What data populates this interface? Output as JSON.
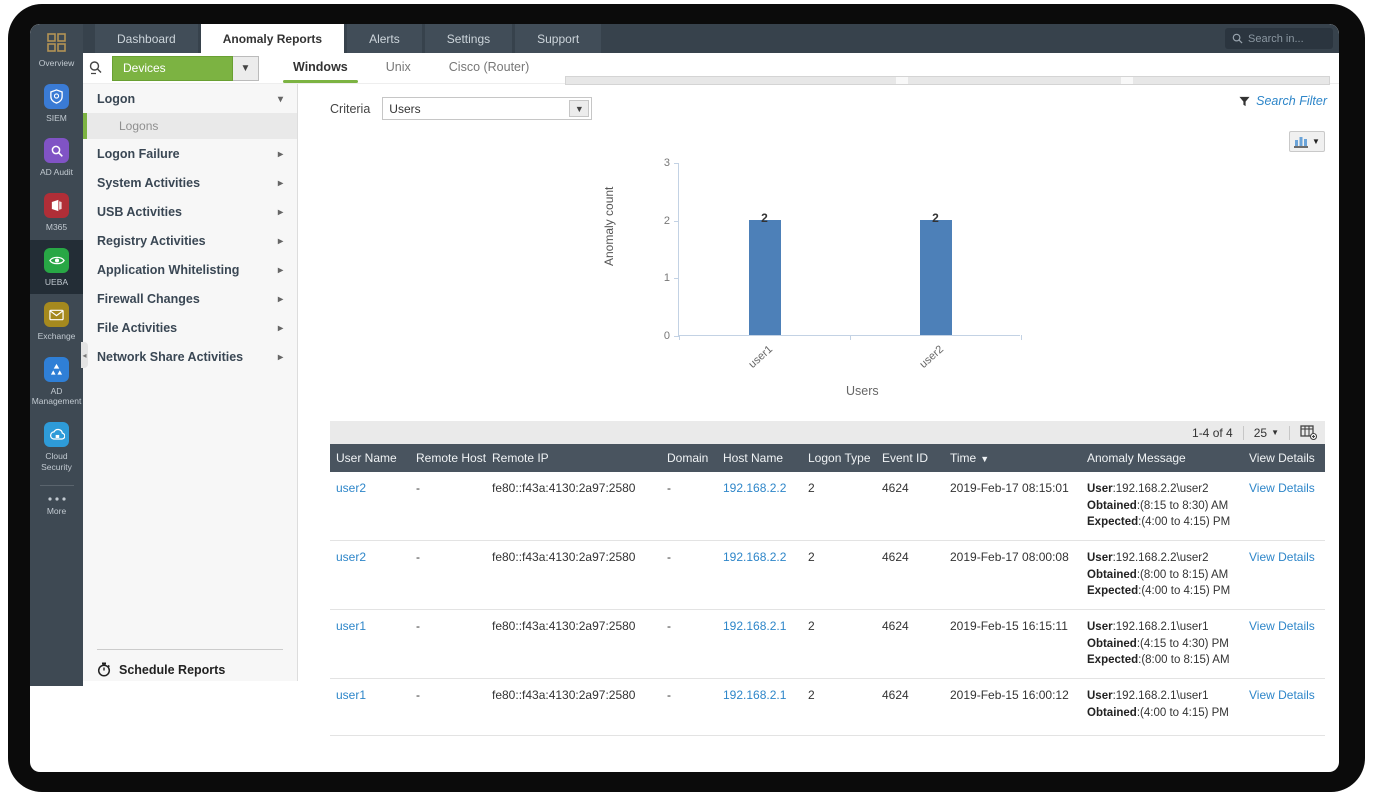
{
  "colors": {
    "accent_green": "#7cb342",
    "link_blue": "#2e86c9",
    "bar_blue": "#4d80b8",
    "table_header_bg": "#49545f",
    "nav_bg": "#37424c",
    "rail_bg": "#3e4953"
  },
  "window": {
    "search_placeholder": "Search in..."
  },
  "top_nav": {
    "tabs": [
      {
        "label": "Dashboard",
        "active": false
      },
      {
        "label": "Anomaly Reports",
        "active": true
      },
      {
        "label": "Alerts",
        "active": false
      },
      {
        "label": "Settings",
        "active": false
      },
      {
        "label": "Support",
        "active": false
      }
    ]
  },
  "icon_rail": {
    "items": [
      {
        "label": "Overview",
        "icon": "grid-icon",
        "color": "transparent",
        "active": false
      },
      {
        "label": "SIEM",
        "icon": "shield-icon",
        "color": "#3a7bd5",
        "active": false
      },
      {
        "label": "AD Audit",
        "icon": "magnifier-icon",
        "color": "#8053c5",
        "active": false
      },
      {
        "label": "M365",
        "icon": "m365-icon",
        "color": "#b02e37",
        "active": false
      },
      {
        "label": "UEBA",
        "icon": "eye-icon",
        "color": "#28a745",
        "active": true
      },
      {
        "label": "Exchange",
        "icon": "mail-icon",
        "color": "#a5891e",
        "active": false
      },
      {
        "label": "AD Management",
        "icon": "ad-pyramid-icon",
        "color": "#2f7fd6",
        "active": false
      },
      {
        "label": "Cloud Security",
        "icon": "cloud-lock-icon",
        "color": "#2e9bd8",
        "active": false
      },
      {
        "label": "More",
        "icon": "dots-icon",
        "color": "transparent",
        "active": false,
        "divider_before": true
      }
    ]
  },
  "sidebar": {
    "device_selector_label": "Devices",
    "os_tabs": [
      {
        "label": "Windows",
        "active": true
      },
      {
        "label": "Unix",
        "active": false
      },
      {
        "label": "Cisco (Router)",
        "active": false
      }
    ],
    "tree": [
      {
        "label": "Logon",
        "caret": "down",
        "children": [
          {
            "label": "Logons",
            "selected": true
          }
        ]
      },
      {
        "label": "Logon Failure",
        "caret": "right"
      },
      {
        "label": "System Activities",
        "caret": "right"
      },
      {
        "label": "USB Activities",
        "caret": "right"
      },
      {
        "label": "Registry Activities",
        "caret": "right"
      },
      {
        "label": "Application Whitelisting",
        "caret": "right"
      },
      {
        "label": "Firewall Changes",
        "caret": "right"
      },
      {
        "label": "File Activities",
        "caret": "right"
      },
      {
        "label": "Network Share Activities",
        "caret": "right"
      }
    ],
    "schedule_reports_label": "Schedule Reports"
  },
  "main": {
    "criteria_label": "Criteria",
    "criteria_value": "Users",
    "search_filter_label": "Search Filter",
    "pagination": {
      "range": "1-4 of 4",
      "page_size": "25"
    },
    "table": {
      "columns": [
        {
          "label": "User Name"
        },
        {
          "label": "Remote Host"
        },
        {
          "label": "Remote IP"
        },
        {
          "label": "Domain"
        },
        {
          "label": "Host Name"
        },
        {
          "label": "Logon Type"
        },
        {
          "label": "Event ID"
        },
        {
          "label": "Time",
          "sorted": true
        },
        {
          "label": "Anomaly Message"
        },
        {
          "label": "View Details"
        }
      ],
      "rows": [
        {
          "user_name": "user2",
          "remote_host": "-",
          "remote_ip": "fe80::f43a:4130:2a97:2580",
          "domain": "-",
          "host_name": "192.168.2.2",
          "logon_type": "2",
          "event_id": "4624",
          "time": "2019-Feb-17 08:15:01",
          "anomaly": [
            {
              "label": "User",
              "value": ":192.168.2.2\\user2"
            },
            {
              "label": "Obtained",
              "value": ":(8:15 to 8:30) AM"
            },
            {
              "label": "Expected",
              "value": ":(4:00 to 4:15) PM"
            }
          ],
          "view_details": "View Details"
        },
        {
          "user_name": "user2",
          "remote_host": "-",
          "remote_ip": "fe80::f43a:4130:2a97:2580",
          "domain": "-",
          "host_name": "192.168.2.2",
          "logon_type": "2",
          "event_id": "4624",
          "time": "2019-Feb-17 08:00:08",
          "anomaly": [
            {
              "label": "User",
              "value": ":192.168.2.2\\user2"
            },
            {
              "label": "Obtained",
              "value": ":(8:00 to 8:15) AM"
            },
            {
              "label": "Expected",
              "value": ":(4:00 to 4:15) PM"
            }
          ],
          "view_details": "View Details"
        },
        {
          "user_name": "user1",
          "remote_host": "-",
          "remote_ip": "fe80::f43a:4130:2a97:2580",
          "domain": "-",
          "host_name": "192.168.2.1",
          "logon_type": "2",
          "event_id": "4624",
          "time": "2019-Feb-15 16:15:11",
          "anomaly": [
            {
              "label": "User",
              "value": ":192.168.2.1\\user1"
            },
            {
              "label": "Obtained",
              "value": ":(4:15 to 4:30) PM"
            },
            {
              "label": "Expected",
              "value": ":(8:00 to 8:15) AM"
            }
          ],
          "view_details": "View Details"
        },
        {
          "user_name": "user1",
          "remote_host": "-",
          "remote_ip": "fe80::f43a:4130:2a97:2580",
          "domain": "-",
          "host_name": "192.168.2.1",
          "logon_type": "2",
          "event_id": "4624",
          "time": "2019-Feb-15 16:00:12",
          "anomaly": [
            {
              "label": "User",
              "value": ":192.168.2.1\\user1"
            },
            {
              "label": "Obtained",
              "value": ":(4:00 to 4:15) PM"
            }
          ],
          "view_details": "View Details"
        }
      ]
    }
  },
  "chart_data": {
    "type": "bar",
    "categories": [
      "user1",
      "user2"
    ],
    "values": [
      2,
      2
    ],
    "data_labels": [
      "2",
      "2"
    ],
    "title": "",
    "xlabel": "Users",
    "ylabel": "Anomaly count",
    "ylim": [
      0,
      3
    ],
    "yticks": [
      0,
      1,
      2,
      3
    ],
    "bar_color": "#4d80b8",
    "grid": false,
    "legend": false
  }
}
